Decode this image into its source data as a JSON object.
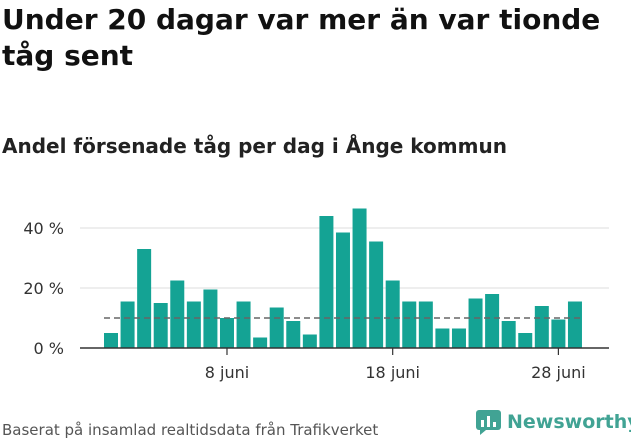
{
  "title": "Under 20 dagar var mer än var tionde tåg sent",
  "subtitle": "Andel försenade tåg per dag i Ånge kommun",
  "source": "Baserat på insamlad realtidsdata från Trafikverket",
  "brand": {
    "name": "Newsworthy",
    "icon": "bar-chart-logo-icon"
  },
  "colors": {
    "bar": "#14a394",
    "reference_line": "#666666",
    "grid": "#dddddd",
    "axis": "#333333"
  },
  "chart_data": {
    "type": "bar",
    "x": [
      "1 juni",
      "2 juni",
      "3 juni",
      "4 juni",
      "5 juni",
      "6 juni",
      "7 juni",
      "8 juni",
      "9 juni",
      "10 juni",
      "11 juni",
      "12 juni",
      "13 juni",
      "14 juni",
      "15 juni",
      "16 juni",
      "17 juni",
      "18 juni",
      "19 juni",
      "20 juni",
      "21 juni",
      "22 juni",
      "23 juni",
      "24 juni",
      "25 juni",
      "26 juni",
      "27 juni",
      "28 juni",
      "29 juni"
    ],
    "values": [
      5,
      15.5,
      33,
      15,
      22.5,
      15.5,
      19.5,
      10,
      15.5,
      3.5,
      13.5,
      9,
      4.5,
      44,
      38.5,
      46.5,
      35.5,
      22.5,
      15.5,
      15.5,
      6.5,
      6.5,
      16.5,
      18,
      9,
      5,
      14,
      9.5,
      15.5
    ],
    "reference_value": 10,
    "x_tick_labels": [
      "8 juni",
      "18 juni",
      "28 juni"
    ],
    "y_ticks": [
      0,
      20,
      40
    ],
    "y_tick_labels": [
      "0 %",
      "20 %",
      "40 %"
    ],
    "ylim": [
      0,
      50
    ],
    "grid": true,
    "legend": false
  }
}
